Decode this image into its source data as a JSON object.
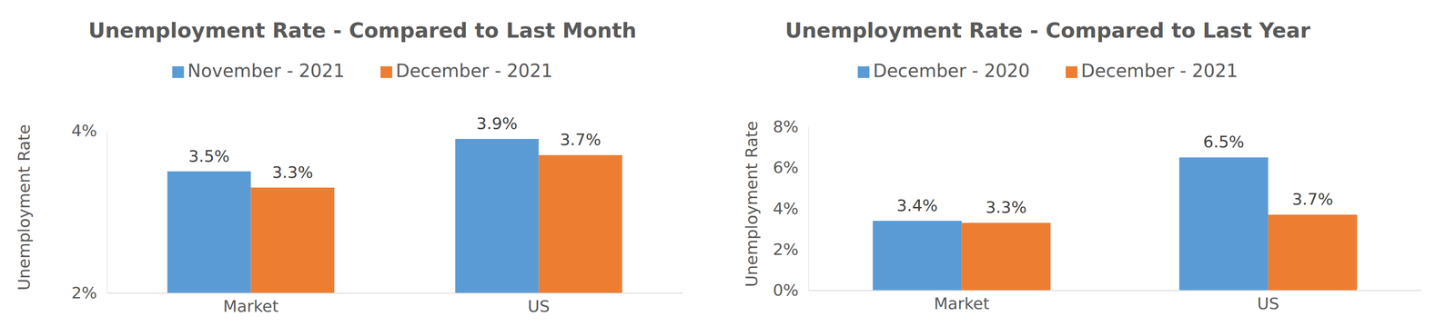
{
  "chart_data": [
    {
      "type": "bar",
      "title": "Unemployment Rate - Compared to Last Month",
      "y_label": "Unemployment Rate",
      "categories": [
        "Market",
        "US"
      ],
      "series": [
        {
          "name": "November - 2021",
          "color": "#5b9bd5",
          "values": [
            3.5,
            3.9
          ],
          "value_labels": [
            "3.5%",
            "3.9%"
          ]
        },
        {
          "name": "December - 2021",
          "color": "#ed7d31",
          "values": [
            3.3,
            3.7
          ],
          "value_labels": [
            "3.3%",
            "3.7%"
          ]
        }
      ],
      "ylim": [
        2,
        4
      ],
      "yticks": [
        {
          "value": 2,
          "label": "2%"
        },
        {
          "value": 4,
          "label": "4%"
        }
      ],
      "legend": "top",
      "data_labels": true
    },
    {
      "type": "bar",
      "title": "Unemployment Rate - Compared to Last Year",
      "y_label": "Unemployment Rate",
      "categories": [
        "Market",
        "US"
      ],
      "series": [
        {
          "name": "December - 2020",
          "color": "#5b9bd5",
          "values": [
            3.4,
            6.5
          ],
          "value_labels": [
            "3.4%",
            "6.5%"
          ]
        },
        {
          "name": "December - 2021",
          "color": "#ed7d31",
          "values": [
            3.3,
            3.7
          ],
          "value_labels": [
            "3.3%",
            "3.7%"
          ]
        }
      ],
      "ylim": [
        0,
        8
      ],
      "yticks": [
        {
          "value": 0,
          "label": "0%"
        },
        {
          "value": 2,
          "label": "2%"
        },
        {
          "value": 4,
          "label": "4%"
        },
        {
          "value": 6,
          "label": "6%"
        },
        {
          "value": 8,
          "label": "8%"
        }
      ],
      "legend": "top",
      "data_labels": true
    }
  ]
}
